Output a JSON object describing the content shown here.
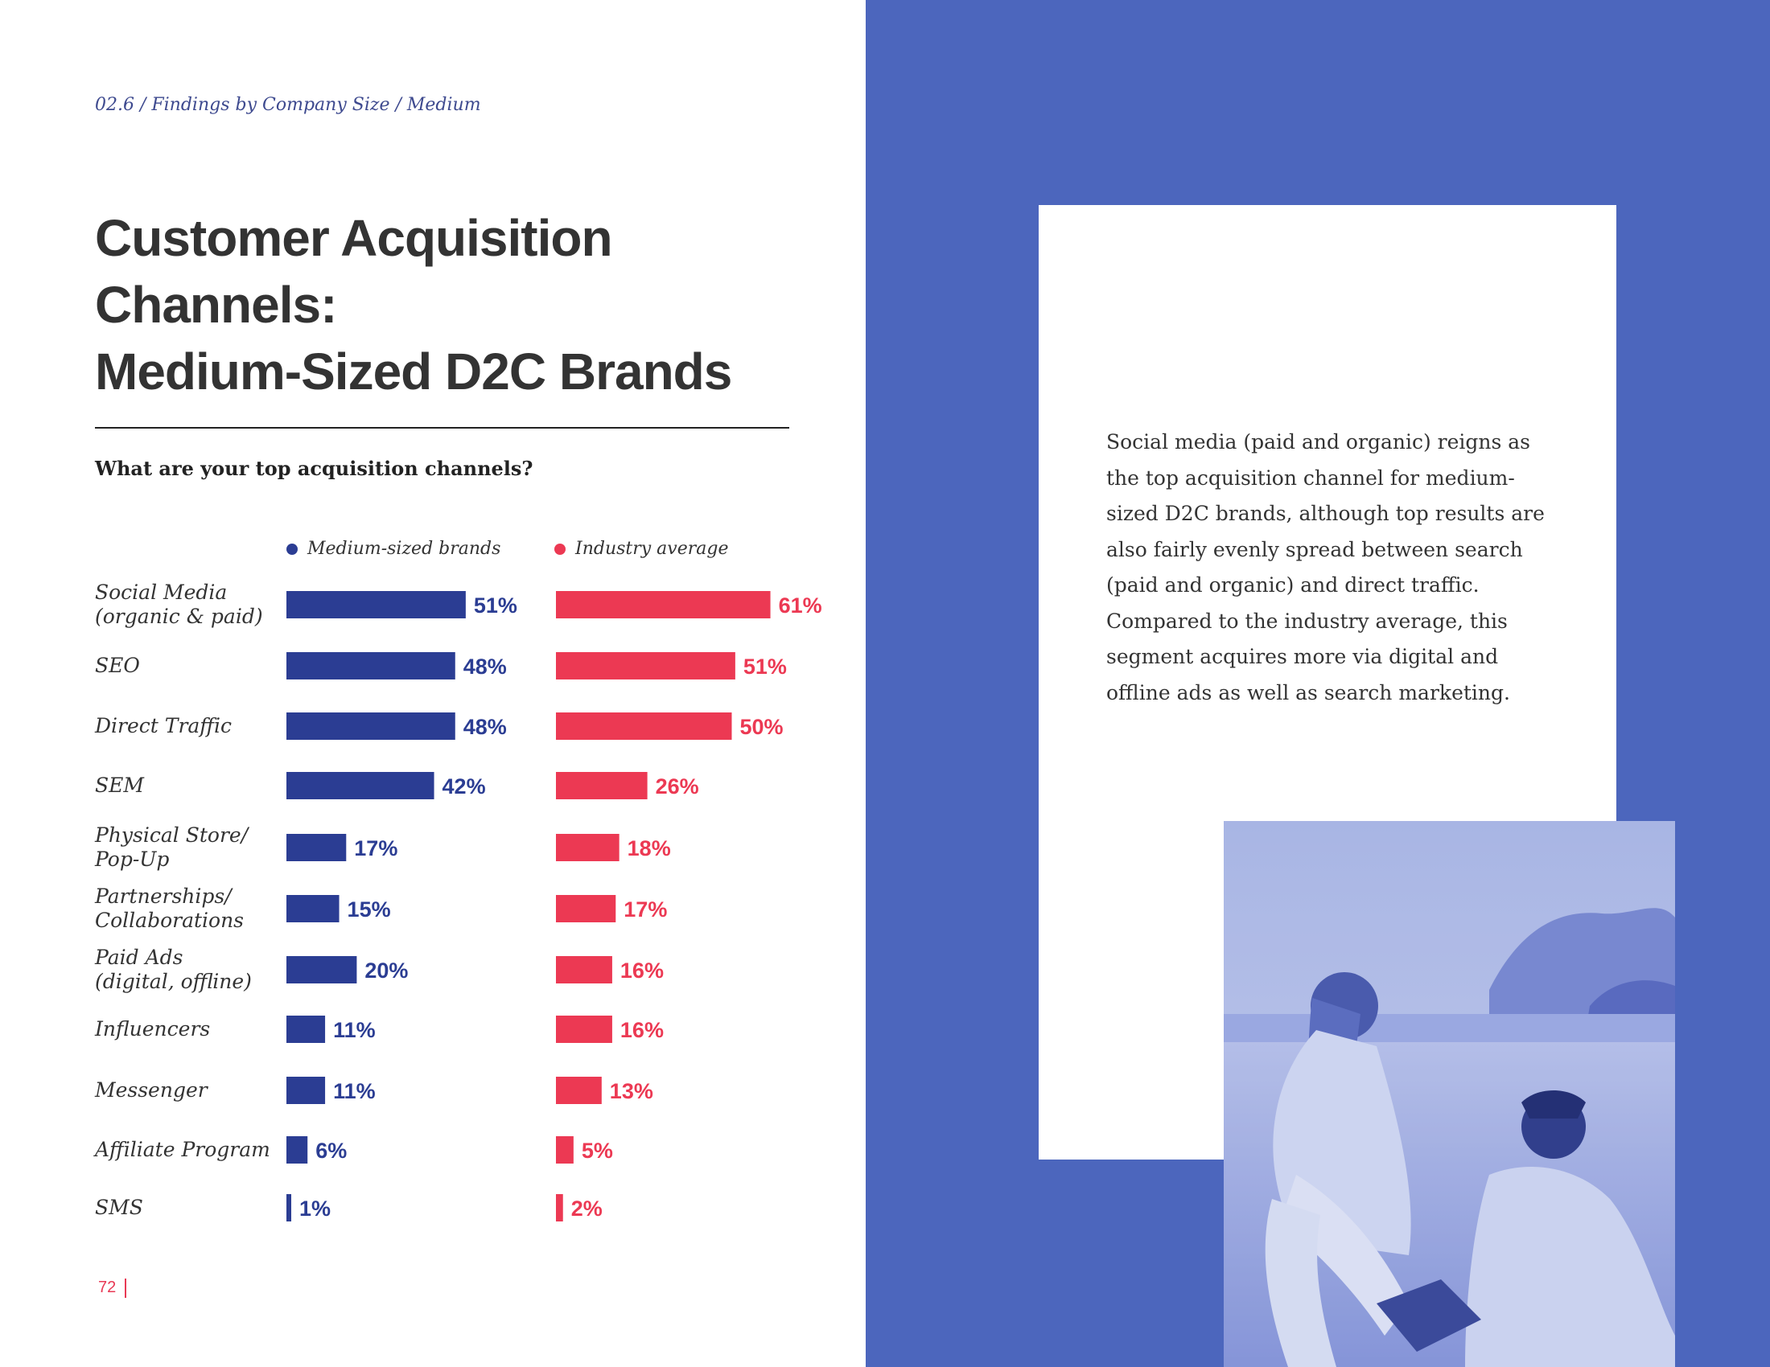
{
  "breadcrumb": "02.6 / Findings by Company Size / Medium",
  "title": {
    "line1": "Customer Acquisition",
    "line2": "Channels:",
    "line3": "Medium-Sized D2C Brands"
  },
  "question": "What are your top acquisition channels?",
  "legend": {
    "medium": "Medium-sized brands",
    "industry": "Industry average"
  },
  "colors": {
    "medium": "#2b3d93",
    "industry": "#ec3953",
    "panel": "#4c66bd",
    "title": "#333333"
  },
  "chart_data": {
    "type": "bar",
    "categories": [
      [
        "Social Media",
        "(organic & paid)"
      ],
      [
        "SEO"
      ],
      [
        "Direct Traffic"
      ],
      [
        "SEM"
      ],
      [
        "Physical Store/",
        "Pop-Up"
      ],
      [
        "Partnerships/",
        "Collaborations"
      ],
      [
        "Paid Ads",
        "(digital, offline)"
      ],
      [
        "Influencers"
      ],
      [
        "Messenger"
      ],
      [
        "Affiliate Program"
      ],
      [
        "SMS"
      ]
    ],
    "series": [
      {
        "name": "Medium-sized brands",
        "values": [
          51,
          48,
          48,
          42,
          17,
          15,
          20,
          11,
          11,
          6,
          1
        ],
        "labels": [
          "51%",
          "48%",
          "48%",
          "42%",
          "17%",
          "15%",
          "20%",
          "11%",
          "11%",
          "6%",
          "1%"
        ]
      },
      {
        "name": "Industry average",
        "values": [
          61,
          51,
          50,
          26,
          18,
          17,
          16,
          16,
          13,
          5,
          2
        ],
        "labels": [
          "61%",
          "51%",
          "50%",
          "26%",
          "18%",
          "17%",
          "16%",
          "16%",
          "13%",
          "5%",
          "2%"
        ]
      }
    ],
    "legend_position": "top"
  },
  "body_text": "Social media (paid and organic) reigns as the top acquisition channel for medium-sized D2C brands, although top results are also fairly evenly spread between search (paid and organic) and direct traffic. Compared to the industry average, this segment acquires more via digital and offline ads as well as search marketing.",
  "page_number": "72",
  "photo": {
    "icon": "beach-photo-duotone"
  }
}
